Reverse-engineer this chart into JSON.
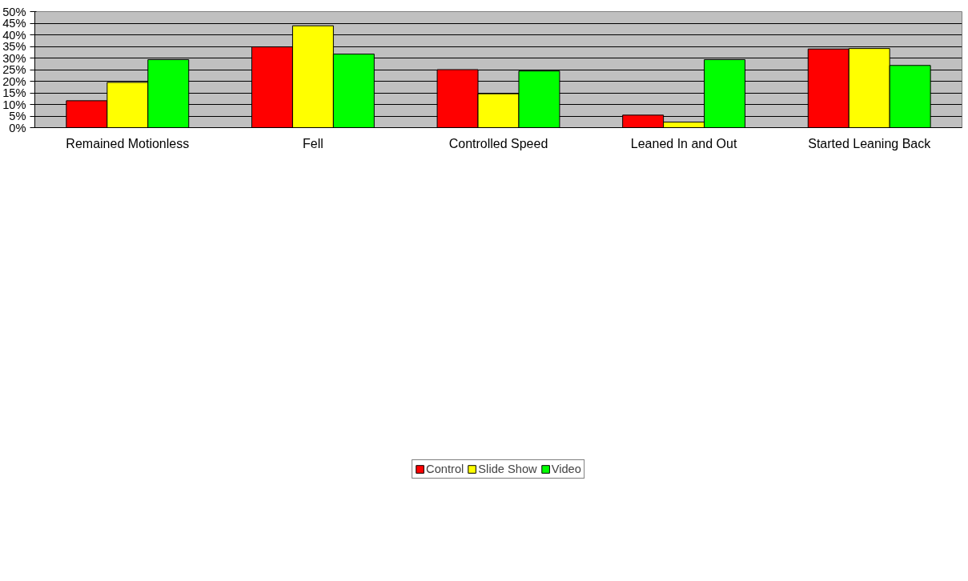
{
  "chart_data": {
    "type": "bar",
    "categories": [
      "Remained Motionless",
      "Fell",
      "Controlled Speed",
      "Leaned In and Out",
      "Started Leaning Back"
    ],
    "series": [
      {
        "name": "Control",
        "color": "#ff0000",
        "values": [
          11.6,
          34.8,
          25.0,
          5.4,
          33.9
        ]
      },
      {
        "name": "Slide Show",
        "color": "#ffff00",
        "values": [
          19.5,
          43.9,
          14.6,
          2.4,
          34.1
        ]
      },
      {
        "name": "Video",
        "color": "#00ff00",
        "values": [
          29.3,
          31.7,
          24.4,
          29.3,
          26.8
        ]
      }
    ],
    "ylim": [
      0,
      50
    ],
    "yticks": [
      {
        "value": 0,
        "label": "0%"
      },
      {
        "value": 5,
        "label": "5%"
      },
      {
        "value": 10,
        "label": "10%"
      },
      {
        "value": 15,
        "label": "15%"
      },
      {
        "value": 20,
        "label": "20%"
      },
      {
        "value": 25,
        "label": "25%"
      },
      {
        "value": 30,
        "label": "30%"
      },
      {
        "value": 35,
        "label": "35%"
      },
      {
        "value": 40,
        "label": "40%"
      },
      {
        "value": 45,
        "label": "45%"
      },
      {
        "value": 50,
        "label": "50%"
      }
    ],
    "grid": "y",
    "legend": "bottom"
  }
}
